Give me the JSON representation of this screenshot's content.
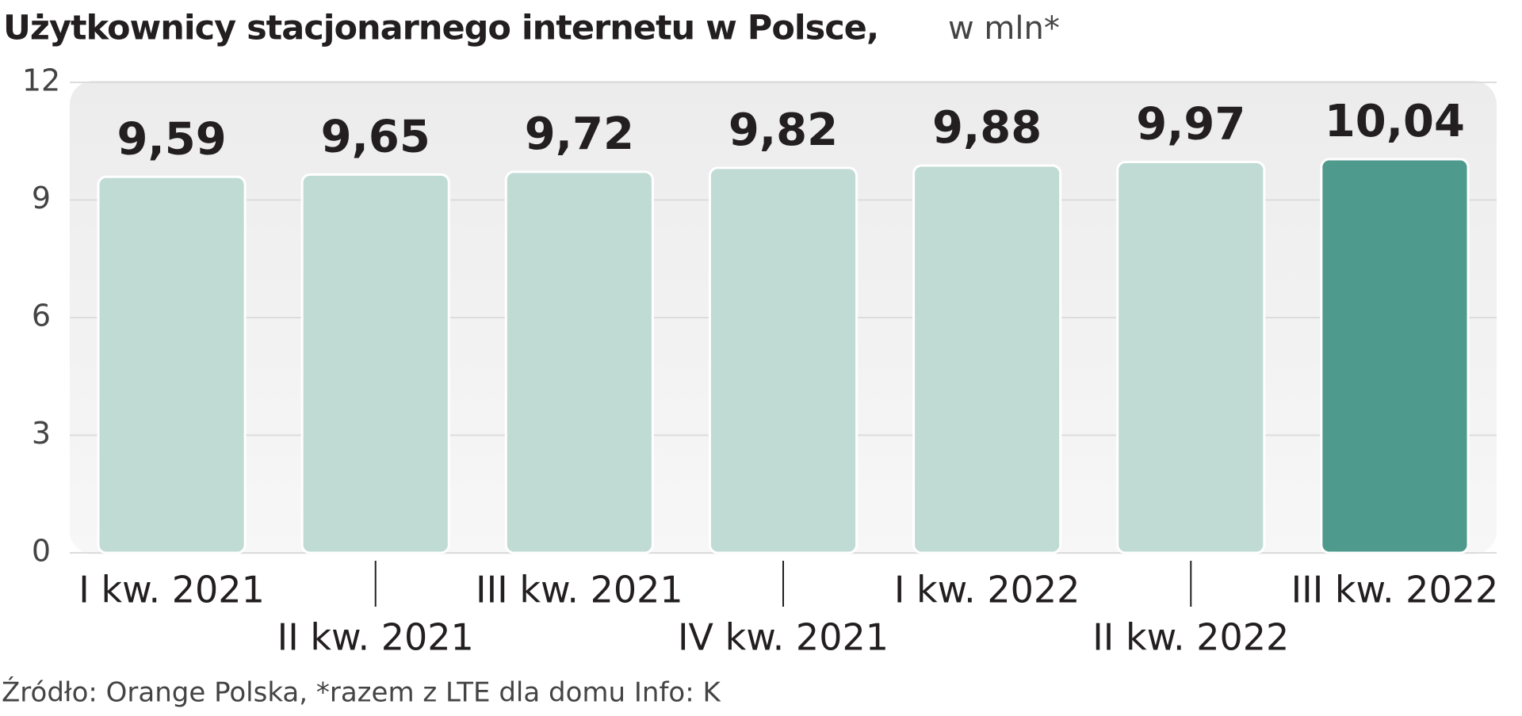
{
  "chart_data": {
    "type": "bar",
    "title": "Użytkownicy stacjonarnego internetu w Polsce,",
    "subtitle": "w mln*",
    "source": "Źródło: Orange Polska, *razem z LTE dla domu  Info: K",
    "categories": [
      "I kw. 2021",
      "II kw. 2021",
      "III kw. 2021",
      "IV kw. 2021",
      "I kw. 2022",
      "II kw. 2022",
      "III kw. 2022"
    ],
    "values": [
      9.59,
      9.65,
      9.72,
      9.82,
      9.88,
      9.97,
      10.04
    ],
    "value_labels": [
      "9,59",
      "9,65",
      "9,72",
      "9,82",
      "9,88",
      "9,97",
      "10,04"
    ],
    "colors": [
      "#bfdbd3",
      "#bfdbd3",
      "#bfdbd3",
      "#bfdbd3",
      "#bfdbd3",
      "#bfdbd3",
      "#4e9a8c"
    ],
    "ylim": [
      0,
      12
    ],
    "yticks": [
      0,
      3,
      6,
      9,
      12
    ],
    "grid": true
  }
}
